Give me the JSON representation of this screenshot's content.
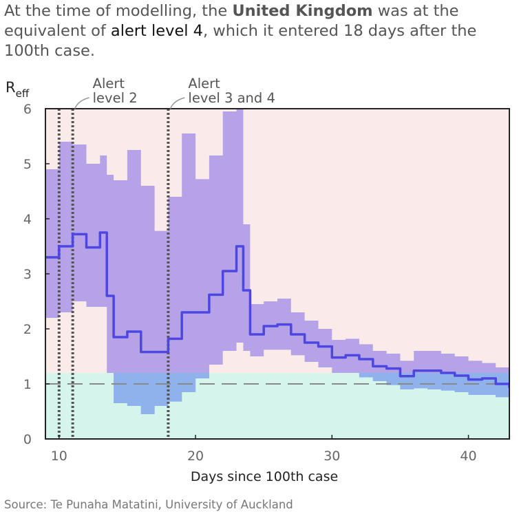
{
  "headline": {
    "part1": "At the time of modelling, the ",
    "country": "United Kingdom",
    "part2": " was at the equivalent of ",
    "level": "alert level 4",
    "part3": ", which it entered 18 days after the 100th case."
  },
  "source": "Source: Te Punaha Matatini, University of Auckland",
  "colors": {
    "line": "#4d46e0",
    "band": "#a996e6",
    "band_low": "#8fb2ec",
    "above_one_bg": "#faeaea",
    "below_one_bg": "#d5f4eb",
    "dotted": "#555555",
    "dashed": "#888888"
  },
  "chart_data": {
    "type": "line",
    "xlabel": "Days since 100th case",
    "ylabel": {
      "main": "R",
      "sub": "eff"
    },
    "xlim": [
      9,
      43
    ],
    "ylim": [
      0,
      6
    ],
    "xticks": [
      10,
      20,
      30,
      40
    ],
    "yticks": [
      0,
      1,
      2,
      3,
      4,
      5,
      6
    ],
    "reference_line": 1,
    "region_split": 1.2,
    "alert_lines": [
      10,
      11,
      18
    ],
    "annotations": [
      {
        "line1": "Alert",
        "line2": "level 2",
        "x": 11
      },
      {
        "line1": "Alert",
        "line2": "level 3 and 4",
        "x": 18
      }
    ],
    "series": [
      {
        "x": [
          9,
          10,
          11,
          12,
          13,
          13.5,
          14,
          15,
          16,
          17,
          18,
          19,
          20,
          21,
          22,
          23,
          23.5,
          24,
          25,
          26,
          27,
          28,
          29,
          30,
          31,
          32,
          33,
          34,
          35,
          36,
          37,
          38,
          39,
          40,
          41,
          42,
          43
        ],
        "median": [
          3.3,
          3.5,
          3.72,
          3.48,
          3.75,
          2.6,
          1.85,
          1.95,
          1.58,
          1.58,
          1.82,
          2.3,
          2.3,
          2.62,
          3.05,
          3.5,
          2.7,
          1.9,
          2.05,
          2.08,
          1.9,
          1.75,
          1.68,
          1.48,
          1.52,
          1.45,
          1.32,
          1.28,
          1.14,
          1.24,
          1.24,
          1.2,
          1.15,
          1.08,
          1.1,
          1.0,
          0.93
        ],
        "lower": [
          2.2,
          2.3,
          2.5,
          2.4,
          2.4,
          1.2,
          0.65,
          0.6,
          0.45,
          0.6,
          0.68,
          0.85,
          1.1,
          1.35,
          1.6,
          1.75,
          1.6,
          1.5,
          1.62,
          1.62,
          1.52,
          1.4,
          1.3,
          1.2,
          1.2,
          1.12,
          1.05,
          0.98,
          0.9,
          0.92,
          0.9,
          0.88,
          0.85,
          0.8,
          0.8,
          0.76,
          0.75
        ],
        "upper": [
          4.9,
          5.4,
          5.35,
          5.0,
          5.15,
          4.8,
          4.7,
          5.25,
          4.6,
          3.78,
          4.4,
          5.55,
          4.72,
          5.15,
          5.95,
          6.0,
          3.9,
          2.45,
          2.5,
          2.55,
          2.3,
          2.15,
          2.0,
          1.8,
          1.82,
          1.72,
          1.6,
          1.55,
          1.42,
          1.6,
          1.6,
          1.55,
          1.5,
          1.42,
          1.38,
          1.3,
          1.2
        ]
      }
    ]
  }
}
